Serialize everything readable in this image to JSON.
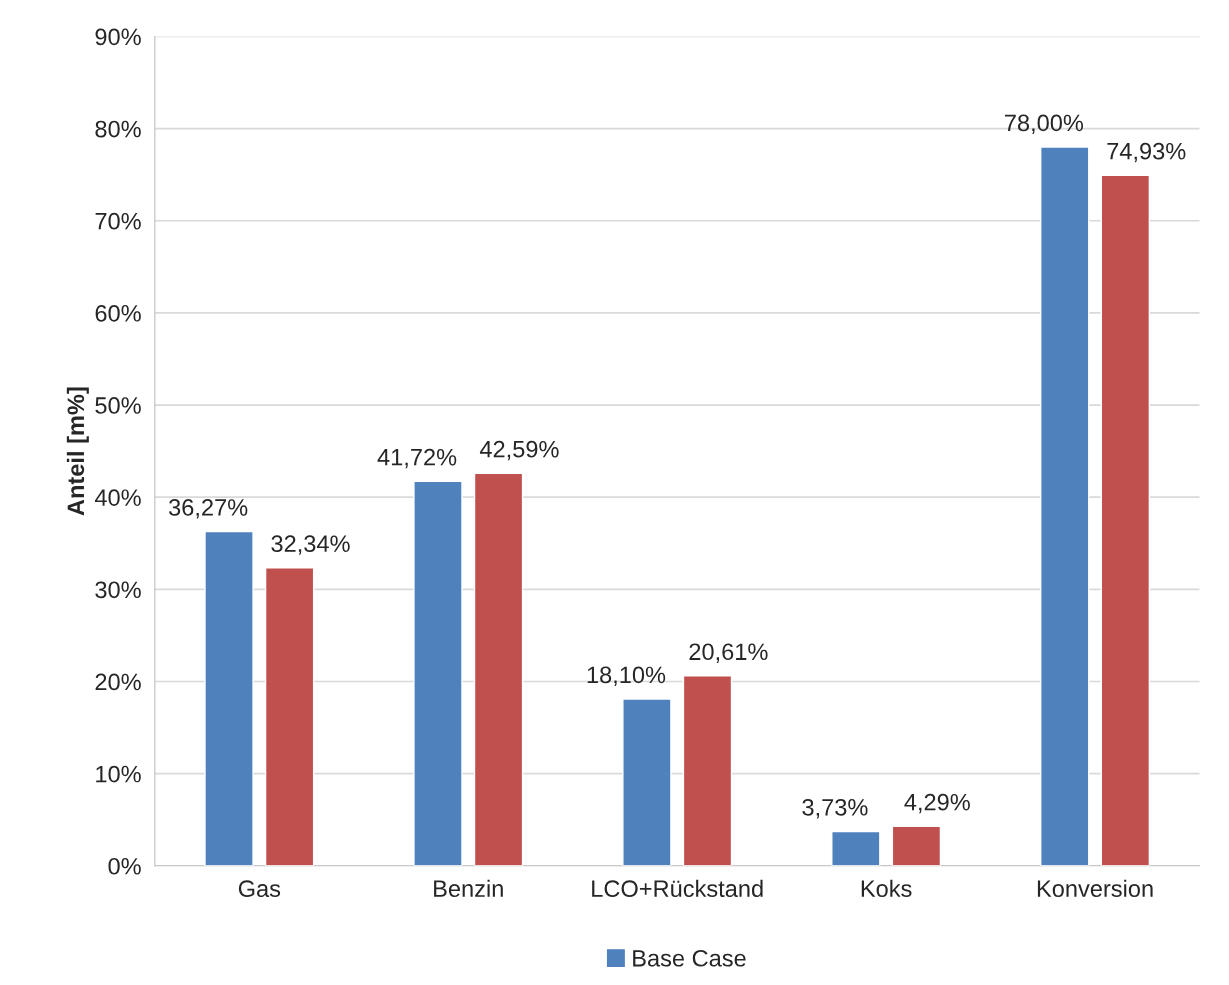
{
  "chart_data": {
    "type": "bar",
    "ylabel": "Anteil [m%]",
    "categories": [
      "Gas",
      "Benzin",
      "LCO+Rückstand",
      "Koks",
      "Konversion"
    ],
    "series": [
      {
        "name": "Base Case",
        "color": "#4f81bd",
        "values": [
          36.27,
          41.72,
          18.1,
          3.73,
          78.0
        ],
        "value_labels": [
          "36,27%",
          "41,72%",
          "18,10%",
          "3,73%",
          "78,00%"
        ]
      },
      {
        "color": "#c0504d",
        "values": [
          32.34,
          42.59,
          20.61,
          4.29,
          74.93
        ],
        "value_labels": [
          "32,34%",
          "42,59%",
          "20,61%",
          "4,29%",
          "74,93%"
        ]
      }
    ],
    "ylim": [
      0,
      90
    ],
    "yticks": [
      {
        "value": 0,
        "label": "0%"
      },
      {
        "value": 10,
        "label": "10%"
      },
      {
        "value": 20,
        "label": "20%"
      },
      {
        "value": 30,
        "label": "30%"
      },
      {
        "value": 40,
        "label": "40%"
      },
      {
        "value": 50,
        "label": "50%"
      },
      {
        "value": 60,
        "label": "60%"
      },
      {
        "value": 70,
        "label": "70%"
      },
      {
        "value": 80,
        "label": "80%"
      },
      {
        "value": 90,
        "label": "90%"
      }
    ],
    "grid": "y",
    "legend": "bottom"
  }
}
